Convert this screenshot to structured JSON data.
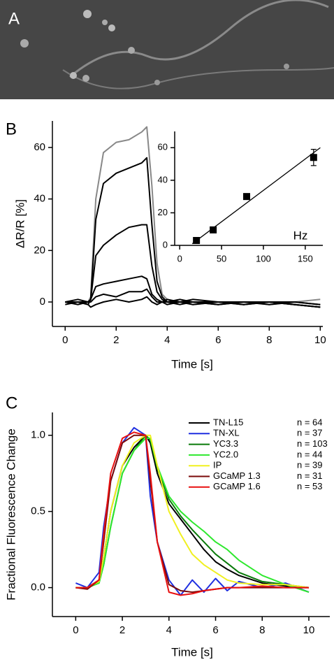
{
  "panel_labels": [
    "A",
    "B",
    "C"
  ],
  "chart_data": [
    {
      "type": "line",
      "xlabel": "Time [s]",
      "ylabel": "ΔR/R [%]",
      "x": [
        0,
        0.5,
        0.9,
        1.0,
        1.2,
        1.5,
        2.0,
        2.5,
        3.0,
        3.2,
        3.4,
        3.6,
        3.8,
        4.0,
        4.5,
        5,
        6,
        7,
        8,
        9,
        10
      ],
      "series": [
        {
          "color": "#888888",
          "values": [
            0,
            -1,
            0,
            2,
            40,
            58,
            62,
            63,
            66,
            68,
            45,
            15,
            3,
            1,
            0,
            -1,
            0,
            0,
            -1,
            0,
            1
          ]
        },
        {
          "color": "#000000",
          "values": [
            0,
            0,
            -1,
            1,
            32,
            46,
            50,
            52,
            54,
            56,
            30,
            8,
            2,
            0,
            1,
            0,
            -1,
            0,
            0,
            -1,
            -2
          ]
        },
        {
          "color": "#000000",
          "values": [
            0,
            1,
            0,
            1,
            18,
            22,
            26,
            29,
            30,
            30,
            14,
            4,
            1,
            0,
            0,
            1,
            0,
            -1,
            0,
            0,
            -1
          ]
        },
        {
          "color": "#000000",
          "values": [
            -1,
            0,
            0,
            1,
            6,
            7,
            8,
            9,
            10,
            9,
            3,
            1,
            0,
            1,
            0,
            -1,
            0,
            0,
            0,
            -1,
            -2
          ]
        },
        {
          "color": "#000000",
          "values": [
            0,
            -1,
            0,
            0,
            2,
            3,
            2,
            4,
            4,
            5,
            2,
            0,
            0,
            -1,
            0,
            0,
            -1,
            0,
            -1,
            0,
            -1
          ]
        },
        {
          "color": "#000000",
          "values": [
            0,
            0,
            -1,
            -2,
            -1,
            0,
            1,
            0,
            1,
            2,
            0,
            -1,
            0,
            0,
            -1,
            0,
            0,
            -1,
            0,
            -1,
            -2
          ]
        }
      ],
      "xlim": [
        -0.5,
        10.1
      ],
      "xticks": [
        0,
        2,
        4,
        6,
        8,
        10
      ],
      "ylim": [
        -9.5,
        70.3
      ],
      "yticks": [
        0,
        20,
        40,
        60
      ]
    },
    {
      "type": "scatter",
      "xlabel": "Hz",
      "x": [
        20,
        40,
        80,
        160
      ],
      "values": [
        3,
        9.5,
        30,
        54
      ],
      "errors": [
        1,
        1,
        1,
        5
      ],
      "color": "#000000",
      "fit_x": [
        15,
        168
      ],
      "fit_y": [
        1,
        60
      ],
      "xlim": [
        -6,
        171
      ],
      "xticks": [
        0,
        50,
        100,
        150
      ],
      "ylim": [
        0,
        70
      ],
      "yticks": [
        0,
        20,
        40,
        60
      ]
    },
    {
      "type": "line",
      "xlabel": "Time [s]",
      "ylabel": "Fractional Fluorescence Change",
      "x": [
        0,
        0.5,
        1.0,
        1.2,
        1.5,
        2.0,
        2.5,
        3.0,
        3.2,
        3.5,
        4.0,
        4.5,
        5,
        5.5,
        6,
        6.5,
        7,
        8,
        9,
        10
      ],
      "series": [
        {
          "name": "TN-L15",
          "n_label": "n =  64",
          "color": "#000000",
          "values": [
            0,
            0,
            0.05,
            0.2,
            0.5,
            0.8,
            0.92,
            1.0,
            0.95,
            0.75,
            0.55,
            0.45,
            0.35,
            0.25,
            0.17,
            0.12,
            0.08,
            0.03,
            0.01,
            0
          ]
        },
        {
          "name": "TN-XL",
          "n_label": "n =  37",
          "color": "#1f2fe0",
          "values": [
            0.03,
            0.0,
            0.1,
            0.4,
            0.7,
            0.95,
            1.05,
            1.0,
            0.6,
            0.3,
            0.05,
            -0.05,
            0.05,
            -0.03,
            0.06,
            -0.02,
            0.04,
            0.0,
            0.03,
            -0.03
          ]
        },
        {
          "name": "YC3.3",
          "n_label": "n = 103",
          "color": "#0a7a0a",
          "values": [
            0,
            0,
            0.03,
            0.15,
            0.4,
            0.75,
            0.9,
            1.0,
            0.97,
            0.78,
            0.58,
            0.47,
            0.38,
            0.3,
            0.22,
            0.16,
            0.1,
            0.04,
            0.02,
            0
          ]
        },
        {
          "name": "YC2.0",
          "n_label": "n =  44",
          "color": "#2ee82e",
          "values": [
            0,
            0,
            0.03,
            0.15,
            0.4,
            0.75,
            0.9,
            0.98,
            0.98,
            0.8,
            0.6,
            0.5,
            0.43,
            0.37,
            0.3,
            0.25,
            0.18,
            0.08,
            0.02,
            -0.03
          ]
        },
        {
          "name": "IP",
          "n_label": "n =  39",
          "color": "#f0f020",
          "values": [
            0,
            0,
            0.04,
            0.2,
            0.5,
            0.8,
            0.95,
            1.0,
            1.0,
            0.8,
            0.5,
            0.35,
            0.22,
            0.15,
            0.1,
            0.05,
            0.03,
            0.02,
            0.02,
            0
          ]
        },
        {
          "name": "GCaMP 1.3",
          "n_label": "n =  31",
          "color": "#7a0a0a",
          "values": [
            0,
            -0.01,
            0.05,
            0.3,
            0.7,
            0.95,
            1.0,
            1.0,
            0.7,
            0.3,
            0.02,
            -0.02,
            -0.03,
            -0.02,
            -0.01,
            0,
            0,
            0,
            0,
            0
          ]
        },
        {
          "name": "GCaMP 1.6",
          "n_label": "n =  53",
          "color": "#e81010",
          "values": [
            0,
            0,
            0.05,
            0.35,
            0.75,
            0.98,
            1.02,
            1.0,
            0.75,
            0.3,
            -0.03,
            -0.05,
            -0.04,
            -0.02,
            -0.01,
            0,
            0,
            0.01,
            0,
            0
          ]
        }
      ],
      "xlim": [
        -1,
        10.9
      ],
      "xticks": [
        0,
        2,
        4,
        6,
        8,
        10
      ],
      "ylim": [
        -0.19,
        1.15
      ],
      "yticks": [
        {
          "value": 0,
          "label": "0.0"
        },
        {
          "value": 0.5,
          "label": "0.5"
        },
        {
          "value": 1,
          "label": "1.0"
        }
      ]
    }
  ]
}
